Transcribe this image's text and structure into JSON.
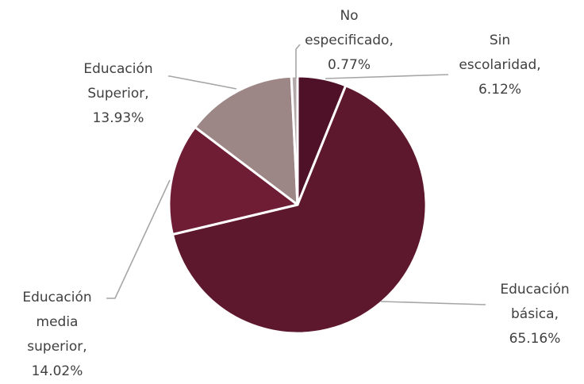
{
  "chart_data": {
    "type": "pie",
    "start_angle_deg": 0,
    "direction": "clockwise",
    "slices": [
      {
        "key": "sin-escolaridad",
        "label_lines": [
          "Sin",
          "escolaridad,",
          "6.12%"
        ],
        "value": 6.12,
        "color": "#4f1127"
      },
      {
        "key": "educacion-basica",
        "label_lines": [
          "Educación",
          "básica,",
          "65.16%"
        ],
        "value": 65.16,
        "color": "#5e182d"
      },
      {
        "key": "educacion-media-superior",
        "label_lines": [
          "Educación",
          "media",
          "superior,",
          "14.02%"
        ],
        "value": 14.02,
        "color": "#6e1d35"
      },
      {
        "key": "educacion-superior",
        "label_lines": [
          "Educación",
          "Superior,",
          "13.93%"
        ],
        "value": 13.93,
        "color": "#9c8686"
      },
      {
        "key": "no-especificado",
        "label_lines": [
          "No",
          "especificado,",
          "0.77%"
        ],
        "value": 0.77,
        "color": "#b3a9a9"
      }
    ]
  }
}
